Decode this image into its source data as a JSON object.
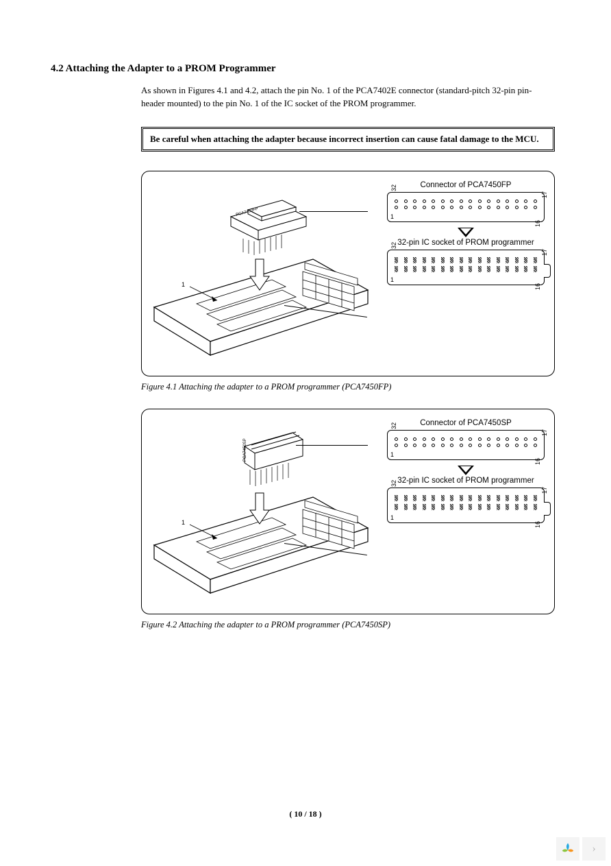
{
  "section_title": "4.2 Attaching the Adapter to a PROM Programmer",
  "body_paragraph": "As shown in Figures 4.1 and 4.2, attach the pin No. 1 of the PCA7402E connector (standard-pitch 32-pin pin-header mounted) to the pin No. 1 of the IC socket of the PROM programmer.",
  "warning_text": "Be careful when attaching the adapter because incorrect insertion can cause fatal damage to the MCU.",
  "figures": {
    "fig1": {
      "connector_title": "Connector of PCA7450FP",
      "socket_title": "32-pin IC socket of PROM programmer",
      "pins": {
        "top_left": "32",
        "top_right": "17",
        "bottom_left": "1",
        "bottom_right": "16",
        "count": 16
      },
      "adapter_label": "PCA7450FP",
      "caption": "Figure 4.1 Attaching the adapter to a PROM programmer (PCA7450FP)"
    },
    "fig2": {
      "connector_title": "Connector of PCA7450SP",
      "socket_title": "32-pin IC socket of PROM programmer",
      "pins": {
        "top_left": "32",
        "top_right": "17",
        "bottom_left": "1",
        "bottom_right": "16",
        "count": 16
      },
      "adapter_label": "PCA7450SP",
      "caption": "Figure 4.2 Attaching the adapter to a PROM programmer (PCA7450SP)"
    }
  },
  "page_number": "( 10 / 18 )",
  "colors": {
    "text": "#000000",
    "background": "#ffffff",
    "badge_bg": "#f4f4f4",
    "leaf_green": "#8cc63f",
    "leaf_orange": "#f7941d",
    "leaf_blue": "#27aae1"
  }
}
